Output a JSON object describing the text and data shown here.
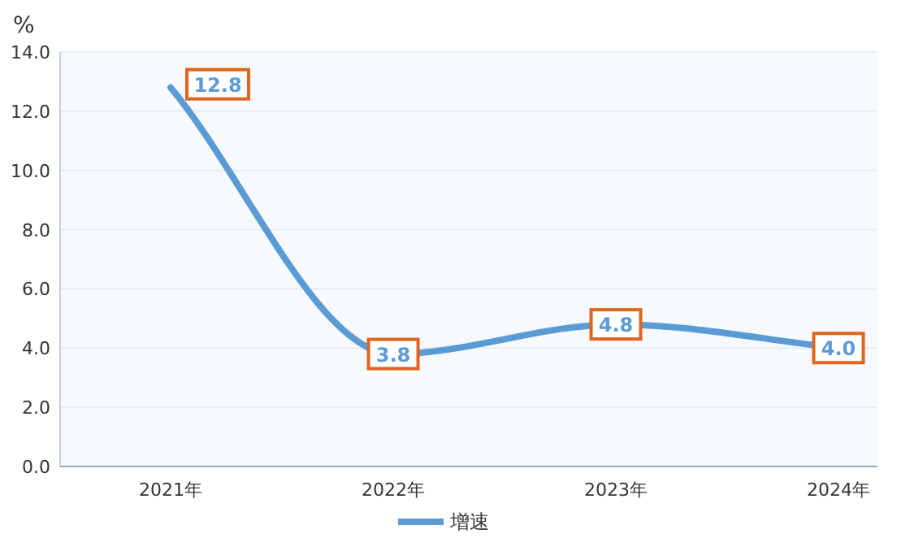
{
  "chart_data": {
    "type": "line",
    "ylabel": "%",
    "categories": [
      "2021年",
      "2022年",
      "2023年",
      "2024年"
    ],
    "series": [
      {
        "name": "增速",
        "color": "#5b9bd5",
        "values": [
          12.8,
          3.8,
          4.8,
          4.0
        ],
        "value_labels": [
          "12.8",
          "3.8",
          "4.8",
          "4.0"
        ]
      }
    ],
    "ylim": [
      0,
      14
    ],
    "yticks": [
      {
        "value": 0,
        "label": "0.0"
      },
      {
        "value": 2,
        "label": "2.0"
      },
      {
        "value": 4,
        "label": "4.0"
      },
      {
        "value": 6,
        "label": "6.0"
      },
      {
        "value": 8,
        "label": "8.0"
      },
      {
        "value": 10,
        "label": "10.0"
      },
      {
        "value": 12,
        "label": "12.0"
      },
      {
        "value": 14,
        "label": "14.0"
      }
    ],
    "grid": "y",
    "legend": "bottom",
    "line_style": "solid"
  }
}
